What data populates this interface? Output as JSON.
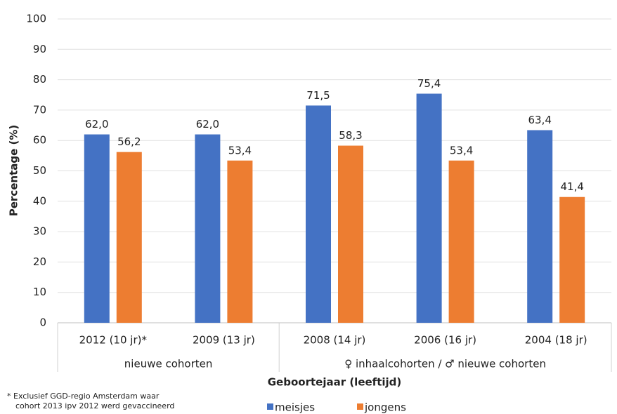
{
  "chart_data": {
    "type": "bar",
    "y_label": "Percentage (%)",
    "x_label": "Geboortejaar (leeftijd)",
    "groups": [
      {
        "label": "nieuwe cohorten",
        "categories": [
          "2012 (10 jr)*",
          "2009 (13 jr)"
        ]
      },
      {
        "label": "♀ inhaalcohorten / ♂ nieuwe cohorten",
        "categories": [
          "2008 (14 jr)",
          "2006 (16 jr)",
          "2004 (18 jr)"
        ]
      }
    ],
    "series": [
      {
        "name": "meisjes",
        "color": "#4472c4",
        "values": [
          62.0,
          62.0,
          71.5,
          75.4,
          63.4
        ],
        "value_labels": [
          "62,0",
          "62,0",
          "71,5",
          "75,4",
          "63,4"
        ]
      },
      {
        "name": "jongens",
        "color": "#ed7d31",
        "values": [
          56.2,
          53.4,
          58.3,
          53.4,
          41.4
        ],
        "value_labels": [
          "56,2",
          "53,4",
          "58,3",
          "53,4",
          "41,4"
        ]
      }
    ],
    "ylim": [
      0,
      100
    ],
    "yticks": [
      0,
      10,
      20,
      30,
      40,
      50,
      60,
      70,
      80,
      90,
      100
    ],
    "grid": true,
    "footnote": [
      "* Exclusief GGD-regio Amsterdam waar",
      "cohort 2013 ipv 2012 werd gevaccineerd"
    ]
  }
}
